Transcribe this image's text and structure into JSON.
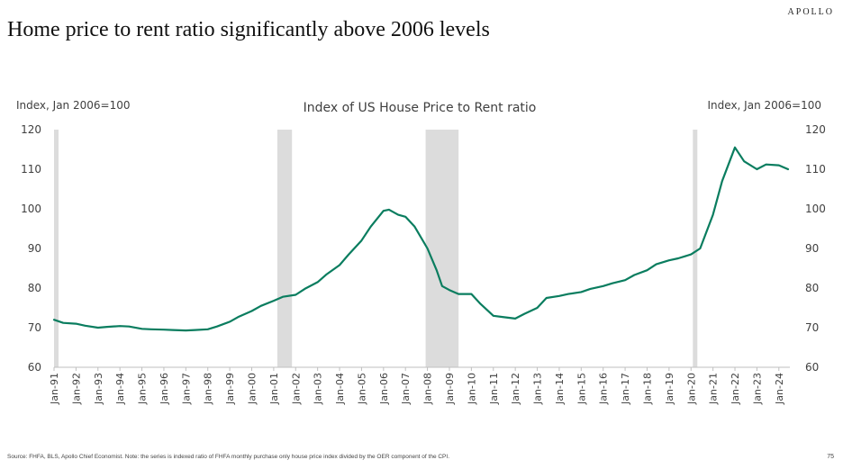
{
  "header": {
    "brand": "APOLLO",
    "headline": "Home price to rent ratio significantly above 2006 levels"
  },
  "footer": {
    "source": "Source: FHFA, BLS, Apollo Chief Economist. Note: the series is indexed ratio of FHFA monthly purchase only house price index divided by the OER component of the CPI.",
    "page_number": "75"
  },
  "chart_data": {
    "type": "line",
    "title": "Index of US House Price to Rent ratio",
    "ylabel_left": "Index, Jan 2006=100",
    "ylabel_right": "Index, Jan 2006=100",
    "ylim": [
      60,
      120
    ],
    "yticks": [
      60,
      70,
      80,
      90,
      100,
      110,
      120
    ],
    "xlim": [
      "1991-01",
      "2024-07"
    ],
    "x_ticks": [
      "Jan-91",
      "Jan-92",
      "Jan-93",
      "Jan-94",
      "Jan-95",
      "Jan-96",
      "Jan-97",
      "Jan-98",
      "Jan-99",
      "Jan-00",
      "Jan-01",
      "Jan-02",
      "Jan-03",
      "Jan-04",
      "Jan-05",
      "Jan-06",
      "Jan-07",
      "Jan-08",
      "Jan-09",
      "Jan-10",
      "Jan-11",
      "Jan-12",
      "Jan-13",
      "Jan-14",
      "Jan-15",
      "Jan-16",
      "Jan-17",
      "Jan-18",
      "Jan-19",
      "Jan-20",
      "Jan-21",
      "Jan-22",
      "Jan-23",
      "Jan-24"
    ],
    "grid": false,
    "legend": "none",
    "line_color": "#0a7d5f",
    "recession_color": "#dcdcdc",
    "recessions": [
      {
        "start": "1991-01",
        "end": "1991-03"
      },
      {
        "start": "2001-03",
        "end": "2001-11"
      },
      {
        "start": "2007-12",
        "end": "2009-06"
      },
      {
        "start": "2020-02",
        "end": "2020-04"
      }
    ],
    "series": [
      {
        "x": [
          "1991-01",
          "1991-06",
          "1992-01",
          "1992-06",
          "1993-01",
          "1993-06",
          "1994-01",
          "1994-06",
          "1995-01",
          "1995-06",
          "1996-01",
          "1996-06",
          "1997-01",
          "1997-06",
          "1998-01",
          "1998-06",
          "1999-01",
          "1999-06",
          "2000-01",
          "2000-06",
          "2001-01",
          "2001-06",
          "2002-01",
          "2002-06",
          "2003-01",
          "2003-06",
          "2004-01",
          "2004-06",
          "2005-01",
          "2005-06",
          "2006-01",
          "2006-04",
          "2006-09",
          "2007-01",
          "2007-06",
          "2008-01",
          "2008-06",
          "2008-09",
          "2009-01",
          "2009-06",
          "2010-01",
          "2010-06",
          "2011-01",
          "2011-06",
          "2012-01",
          "2012-06",
          "2013-01",
          "2013-06",
          "2014-01",
          "2014-06",
          "2015-01",
          "2015-06",
          "2016-01",
          "2016-06",
          "2017-01",
          "2017-06",
          "2018-01",
          "2018-06",
          "2019-01",
          "2019-06",
          "2020-01",
          "2020-06",
          "2021-01",
          "2021-06",
          "2022-01",
          "2022-06",
          "2023-01",
          "2023-06",
          "2024-01",
          "2024-06"
        ],
        "values": [
          72,
          71.2,
          71,
          70.5,
          70,
          70.2,
          70.4,
          70.3,
          69.7,
          69.6,
          69.5,
          69.4,
          69.3,
          69.4,
          69.6,
          70.3,
          71.5,
          72.8,
          74.2,
          75.5,
          76.8,
          77.8,
          78.3,
          79.8,
          81.5,
          83.5,
          85.8,
          88.5,
          92,
          95.5,
          99.5,
          99.8,
          98.5,
          98,
          95.5,
          90,
          84.5,
          80.5,
          79.5,
          78.5,
          78.5,
          76,
          73,
          72.7,
          72.3,
          73.5,
          75,
          77.5,
          78,
          78.5,
          79,
          79.8,
          80.5,
          81.2,
          82,
          83.3,
          84.5,
          86,
          87,
          87.5,
          88.5,
          90,
          98.5,
          107,
          115.5,
          112,
          110,
          111.2,
          111,
          110
        ]
      }
    ]
  }
}
